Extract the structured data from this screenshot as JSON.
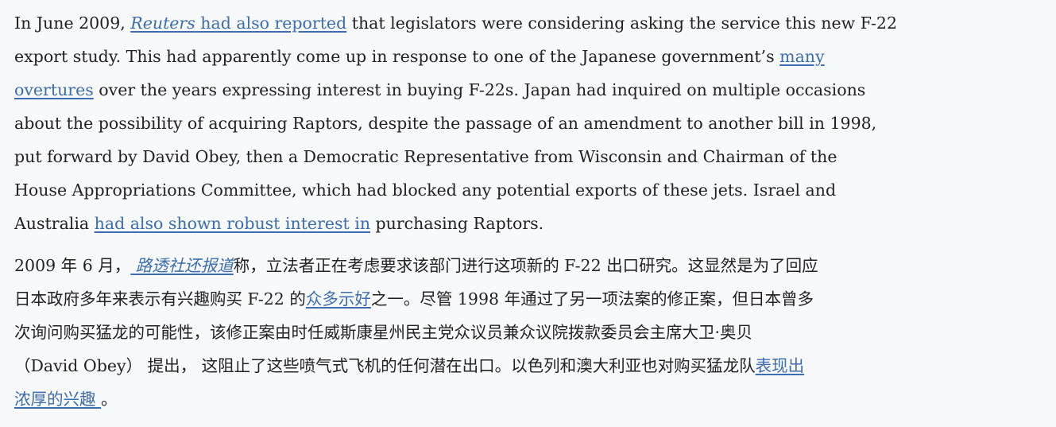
{
  "link_color": "#3b6db0",
  "text_color": "#222222",
  "background": "#f8f9fa",
  "paragraphs": [
    {
      "lines": [
        [
          {
            "t": "In June 2009, "
          },
          {
            "t": "Reuters",
            "link": true,
            "italic": true
          },
          {
            "t": " had also reported",
            "link": true
          },
          {
            "t": " that legislators were considering asking the service this new F-22"
          }
        ],
        [
          {
            "t": "export study. This had apparently come up in response to one of the Japanese government’s "
          },
          {
            "t": "many",
            "link": true
          }
        ],
        [
          {
            "t": "overtures",
            "link": true
          },
          {
            "t": " over the years expressing interest in buying F-22s. Japan had inquired on multiple occasions"
          }
        ],
        [
          {
            "t": "about the possibility of acquiring Raptors, despite the passage of an amendment to another bill in 1998,"
          }
        ],
        [
          {
            "t": "put forward by David Obey, then a Democratic Representative from Wisconsin and Chairman of the"
          }
        ],
        [
          {
            "t": "House Appropriations Committee, which had blocked any potential exports of these jets. Israel and"
          }
        ],
        [
          {
            "t": "Australia "
          },
          {
            "t": "had also shown robust interest in",
            "link": true
          },
          {
            "t": " purchasing Raptors."
          }
        ]
      ]
    },
    {
      "lines": [
        [
          {
            "t": "2009 年 6 月，"
          },
          {
            "t": " 路透社还报道",
            "link": true,
            "italic": true
          },
          {
            "t": "称，立法者正在考虑要求该部门进行这项新的 F-22 出口研究。这显然是为了回应"
          }
        ],
        [
          {
            "t": "日本政府多年来表示有兴趣购买 F-22 的"
          },
          {
            "t": "众多示好",
            "link": true
          },
          {
            "t": "之一。尽管 1998 年通过了另一项法案的修正案，但日本曾多"
          }
        ],
        [
          {
            "t": "次询问购买猛龙的可能性，该修正案由时任威斯康星州民主党众议员兼众议院拨款委员会主席大卫·奥贝"
          }
        ],
        [
          {
            "t": "（David Obey） 提出， 这阻止了这些喷气式飞机的任何潜在出口。以色列和澳大利亚也对购买猛龙队"
          },
          {
            "t": "表现出",
            "link": true
          }
        ],
        [
          {
            "t": "浓厚的兴趣 ",
            "link": true
          },
          {
            "t": "。"
          }
        ]
      ]
    }
  ]
}
